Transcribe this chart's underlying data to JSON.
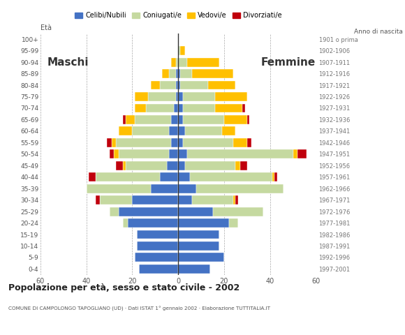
{
  "age_groups": [
    "0-4",
    "5-9",
    "10-14",
    "15-19",
    "20-24",
    "25-29",
    "30-34",
    "35-39",
    "40-44",
    "45-49",
    "50-54",
    "55-59",
    "60-64",
    "65-69",
    "70-74",
    "75-79",
    "80-84",
    "85-89",
    "90-94",
    "95-99",
    "100+"
  ],
  "birth_years": [
    "1997-2001",
    "1992-1996",
    "1987-1991",
    "1982-1986",
    "1977-1981",
    "1972-1976",
    "1967-1971",
    "1962-1966",
    "1957-1961",
    "1952-1956",
    "1947-1951",
    "1942-1946",
    "1937-1941",
    "1932-1936",
    "1927-1931",
    "1922-1926",
    "1917-1921",
    "1912-1916",
    "1907-1911",
    "1902-1906",
    "1901 o prima"
  ],
  "colors": {
    "celibe": "#4472c4",
    "coniugato": "#c5d9a0",
    "vedovo": "#ffc000",
    "divorziato": "#c0000c"
  },
  "males": {
    "celibe": [
      17,
      19,
      18,
      18,
      22,
      26,
      20,
      12,
      8,
      5,
      4,
      3,
      4,
      3,
      2,
      1,
      1,
      1,
      0,
      0,
      0
    ],
    "coniugato": [
      0,
      0,
      0,
      0,
      2,
      4,
      14,
      28,
      28,
      18,
      22,
      24,
      16,
      16,
      12,
      12,
      7,
      3,
      1,
      0,
      0
    ],
    "vedovo": [
      0,
      0,
      0,
      0,
      0,
      0,
      0,
      0,
      0,
      1,
      2,
      2,
      6,
      4,
      5,
      6,
      4,
      3,
      2,
      0,
      0
    ],
    "divorziato": [
      0,
      0,
      0,
      0,
      0,
      0,
      2,
      0,
      3,
      3,
      2,
      2,
      0,
      1,
      0,
      0,
      0,
      0,
      0,
      0,
      0
    ]
  },
  "females": {
    "celibe": [
      14,
      20,
      18,
      18,
      22,
      15,
      6,
      8,
      5,
      3,
      4,
      2,
      3,
      2,
      2,
      2,
      1,
      1,
      0,
      0,
      0
    ],
    "coniugato": [
      0,
      0,
      0,
      0,
      4,
      22,
      18,
      38,
      36,
      22,
      46,
      22,
      16,
      18,
      14,
      14,
      12,
      5,
      4,
      1,
      0
    ],
    "vedovo": [
      0,
      0,
      0,
      0,
      0,
      0,
      1,
      0,
      1,
      2,
      2,
      6,
      6,
      10,
      12,
      14,
      12,
      18,
      14,
      2,
      0
    ],
    "divorziato": [
      0,
      0,
      0,
      0,
      0,
      0,
      1,
      0,
      1,
      3,
      4,
      2,
      0,
      1,
      1,
      0,
      0,
      0,
      0,
      0,
      0
    ]
  },
  "title": "Popolazione per età, sesso e stato civile - 2002",
  "subtitle": "COMUNE DI CAMPOLONGO TAPOGLIANO (UD) · Dati ISTAT 1° gennaio 2002 · Elaborazione TUTTITALIA.IT",
  "xlabel_left": "Maschi",
  "xlabel_right": "Femmine",
  "ylabel": "Età",
  "ylabel_right": "Anno di nascita",
  "xlim": 60,
  "legend_labels": [
    "Celibi/Nubili",
    "Coniugati/e",
    "Vedovi/e",
    "Divorziati/e"
  ]
}
